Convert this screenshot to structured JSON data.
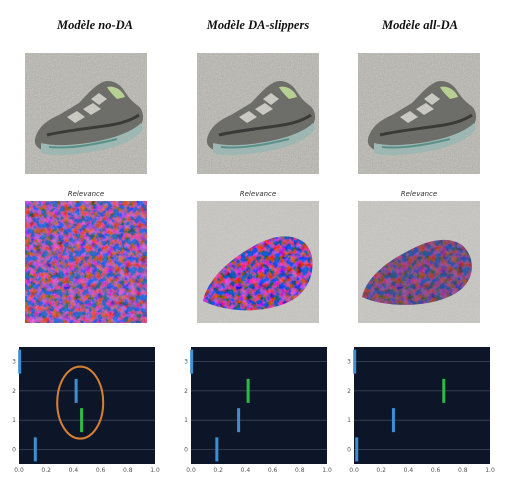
{
  "panels": [
    {
      "title": "Modèle no-DA",
      "relevance_label": "Relevance"
    },
    {
      "title": "Modèle DA-slippers",
      "relevance_label": "Relevance"
    },
    {
      "title": "Modèle all-DA",
      "relevance_label": "Relevance"
    }
  ],
  "chart_data": [
    {
      "type": "scatter",
      "xlim": [
        0,
        1
      ],
      "ylim": [
        -0.5,
        3.5
      ],
      "x_ticks": [
        "0.0",
        "0.2",
        "0.4",
        "0.6",
        "0.8",
        "1.0"
      ],
      "y_ticks": [
        "0",
        "1",
        "2",
        "3"
      ],
      "grid": true,
      "background": "#0d1628",
      "points": [
        {
          "x": 0.005,
          "y": 3,
          "color": "#3d8fd1"
        },
        {
          "x": 0.42,
          "y": 2,
          "color": "#3d8fd1"
        },
        {
          "x": 0.46,
          "y": 1,
          "color": "#2fb84a"
        },
        {
          "x": 0.12,
          "y": 0,
          "color": "#3d8fd1"
        }
      ],
      "annotation": {
        "shape": "ellipse",
        "color": "#d98033",
        "cx": 0.45,
        "cy": 1.6
      }
    },
    {
      "type": "scatter",
      "xlim": [
        0,
        1
      ],
      "ylim": [
        -0.5,
        3.5
      ],
      "x_ticks": [
        "0.0",
        "0.2",
        "0.4",
        "0.6",
        "0.8",
        "1.0"
      ],
      "y_ticks": [
        "0",
        "1",
        "2",
        "3"
      ],
      "grid": true,
      "background": "#0d1628",
      "points": [
        {
          "x": 0.005,
          "y": 3,
          "color": "#3d8fd1"
        },
        {
          "x": 0.42,
          "y": 2,
          "color": "#2fb84a"
        },
        {
          "x": 0.35,
          "y": 1,
          "color": "#3d8fd1"
        },
        {
          "x": 0.19,
          "y": 0,
          "color": "#3d8fd1"
        }
      ]
    },
    {
      "type": "scatter",
      "xlim": [
        0,
        1
      ],
      "ylim": [
        -0.5,
        3.5
      ],
      "x_ticks": [
        "0.0",
        "0.2",
        "0.4",
        "0.6",
        "0.8",
        "1.0"
      ],
      "y_ticks": [
        "0",
        "1",
        "2",
        "3"
      ],
      "grid": true,
      "background": "#0d1628",
      "points": [
        {
          "x": 0.005,
          "y": 3,
          "color": "#3d8fd1"
        },
        {
          "x": 0.66,
          "y": 2,
          "color": "#2fb84a"
        },
        {
          "x": 0.29,
          "y": 1,
          "color": "#3d8fd1"
        },
        {
          "x": 0.02,
          "y": 0,
          "color": "#3d8fd1"
        }
      ]
    }
  ]
}
